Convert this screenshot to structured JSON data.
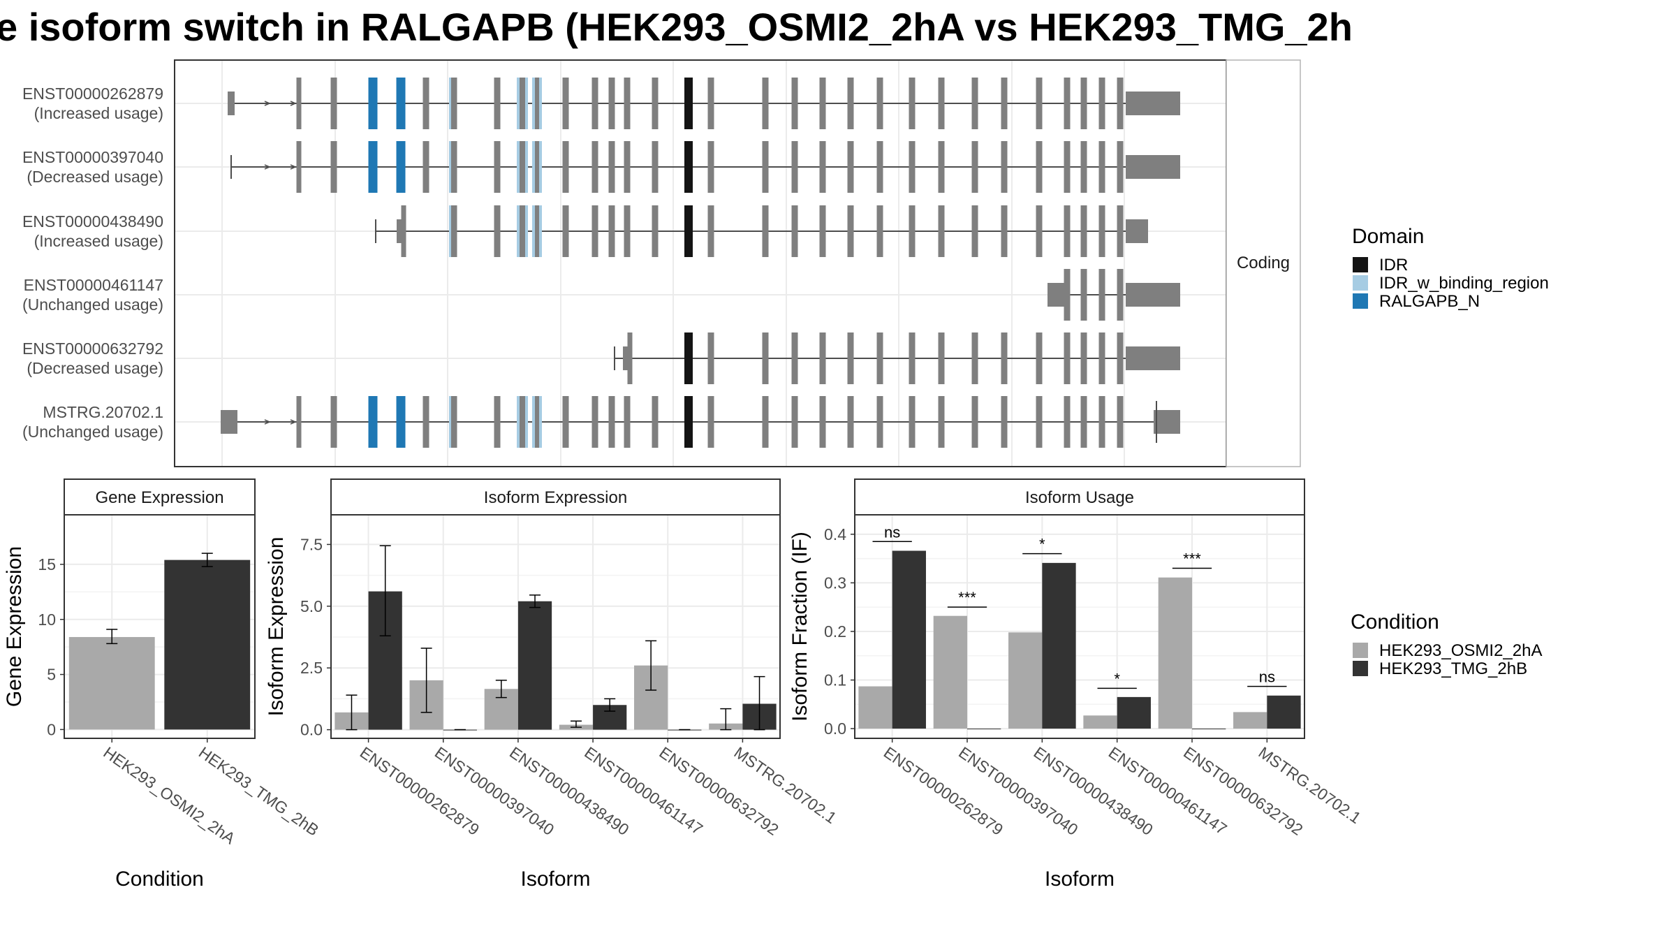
{
  "figure": {
    "title": "e isoform switch in RALGAPB (HEK293_OSMI2_2hA vs HEK293_TMG_2h"
  },
  "colors": {
    "cond1": "#a9a9a9",
    "cond2": "#333333",
    "exon": "#7f7f7f",
    "IDR": "#141414",
    "IDR_w_binding_region": "#a6cce3",
    "RALGAPB_N": "#1f78b4",
    "grid": "#ebebeb",
    "strip_bg": "#ffffff",
    "panel_border": "#333333"
  },
  "isoform_structure": {
    "strip_label": "Coding",
    "isoforms": [
      {
        "id": "ENST00000262879",
        "usage": "(Increased usage)"
      },
      {
        "id": "ENST00000397040",
        "usage": "(Decreased usage)"
      },
      {
        "id": "ENST00000438490",
        "usage": "(Increased usage)"
      },
      {
        "id": "ENST00000461147",
        "usage": "(Unchanged usage)"
      },
      {
        "id": "ENST00000632792",
        "usage": "(Decreased usage)"
      },
      {
        "id": "MSTRG.20702.1",
        "usage": "(Unchanged usage)"
      }
    ]
  },
  "legend_domain": {
    "title": "Domain",
    "items": [
      {
        "label": "IDR",
        "color": "#141414"
      },
      {
        "label": "IDR_w_binding_region",
        "color": "#a6cce3"
      },
      {
        "label": "RALGAPB_N",
        "color": "#1f78b4"
      }
    ]
  },
  "legend_condition": {
    "title": "Condition",
    "items": [
      {
        "label": "HEK293_OSMI2_2hA",
        "color": "#a9a9a9"
      },
      {
        "label": "HEK293_TMG_2hB",
        "color": "#333333"
      }
    ]
  },
  "chart_data": [
    {
      "type": "bar",
      "title": "Gene Expression",
      "xlabel": "Condition",
      "ylabel": "Gene Expression",
      "categories": [
        "HEK293_OSMI2_2hA",
        "HEK293_TMG_2hB"
      ],
      "values": [
        8.4,
        15.4
      ],
      "error_low": [
        7.8,
        14.8
      ],
      "error_high": [
        9.1,
        16.0
      ],
      "ylim": [
        -0.8,
        19.5
      ],
      "yticks": [
        0,
        5,
        10,
        15
      ],
      "ytick_labels": [
        "0",
        "5",
        "10",
        "15"
      ]
    },
    {
      "type": "bar",
      "title": "Isoform Expression",
      "xlabel": "Isoform",
      "ylabel": "Isoform Expression",
      "categories": [
        "ENST00000262879",
        "ENST00000397040",
        "ENST00000438490",
        "ENST00000461147",
        "ENST00000632792",
        "MSTRG.20702.1"
      ],
      "series": [
        {
          "name": "HEK293_OSMI2_2hA",
          "values": [
            0.7,
            2.0,
            1.65,
            0.2,
            2.6,
            0.25
          ],
          "error_low": [
            0.0,
            0.7,
            1.3,
            0.1,
            1.6,
            0.0
          ],
          "error_high": [
            1.4,
            3.3,
            2.0,
            0.35,
            3.6,
            0.85
          ]
        },
        {
          "name": "HEK293_TMG_2hB",
          "values": [
            5.6,
            0.0,
            5.2,
            1.0,
            0.0,
            1.05
          ],
          "error_low": [
            3.8,
            0.0,
            4.95,
            0.75,
            0.0,
            0.0
          ],
          "error_high": [
            7.45,
            0.0,
            5.45,
            1.25,
            0.0,
            2.15
          ]
        }
      ],
      "ylim": [
        -0.35,
        8.7
      ],
      "yticks": [
        0,
        2.5,
        5,
        7.5
      ],
      "ytick_labels": [
        "0.0",
        "2.5",
        "5.0",
        "7.5"
      ]
    },
    {
      "type": "bar",
      "title": "Isoform Usage",
      "xlabel": "Isoform",
      "ylabel": "Isoform Fraction (IF)",
      "categories": [
        "ENST00000262879",
        "ENST00000397040",
        "ENST00000438490",
        "ENST00000461147",
        "ENST00000632792",
        "MSTRG.20702.1"
      ],
      "series": [
        {
          "name": "HEK293_OSMI2_2hA",
          "values": [
            0.087,
            0.232,
            0.198,
            0.027,
            0.311,
            0.034
          ]
        },
        {
          "name": "HEK293_TMG_2hB",
          "values": [
            0.366,
            0.0,
            0.341,
            0.065,
            0.0,
            0.068
          ]
        }
      ],
      "significance": [
        "ns",
        "***",
        "*",
        "*",
        "***",
        "ns"
      ],
      "significance_y": [
        0.385,
        0.25,
        0.36,
        0.083,
        0.33,
        0.087
      ],
      "ylim": [
        -0.02,
        0.44
      ],
      "yticks": [
        0,
        0.1,
        0.2,
        0.3,
        0.4
      ],
      "ytick_labels": [
        "0.0",
        "0.1",
        "0.2",
        "0.3",
        "0.4"
      ]
    }
  ]
}
